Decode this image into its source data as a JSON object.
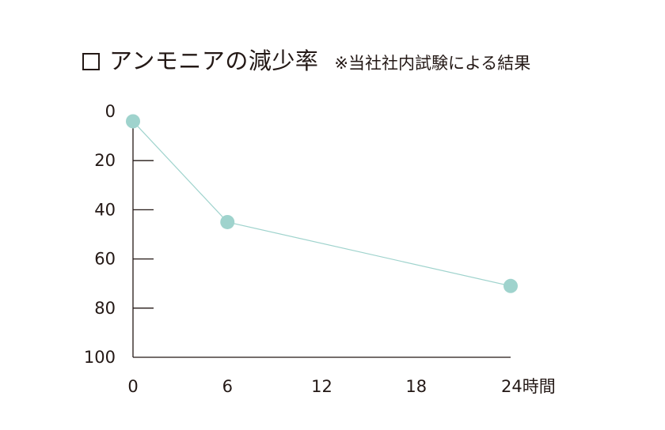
{
  "title": {
    "main": "アンモニアの減少率",
    "note": "※当社社内試験による結果"
  },
  "chart_data": {
    "type": "line",
    "title": "アンモニアの減少率",
    "subtitle": "※当社社内試験による結果",
    "x": [
      0,
      6,
      24
    ],
    "series": [
      {
        "values": [
          4,
          45,
          71
        ]
      }
    ],
    "xlabel": "",
    "ylabel": "",
    "xlim": [
      0,
      24
    ],
    "ylim": [
      0,
      100
    ],
    "y_inverted": true,
    "x_ticks": [
      "0",
      "6",
      "12",
      "18",
      "24時間"
    ],
    "y_ticks": [
      "0",
      "20",
      "40",
      "60",
      "80",
      "100"
    ],
    "grid": false,
    "legend": "none",
    "colors": {
      "series": "#9fd3cd",
      "axis": "#231815"
    }
  }
}
